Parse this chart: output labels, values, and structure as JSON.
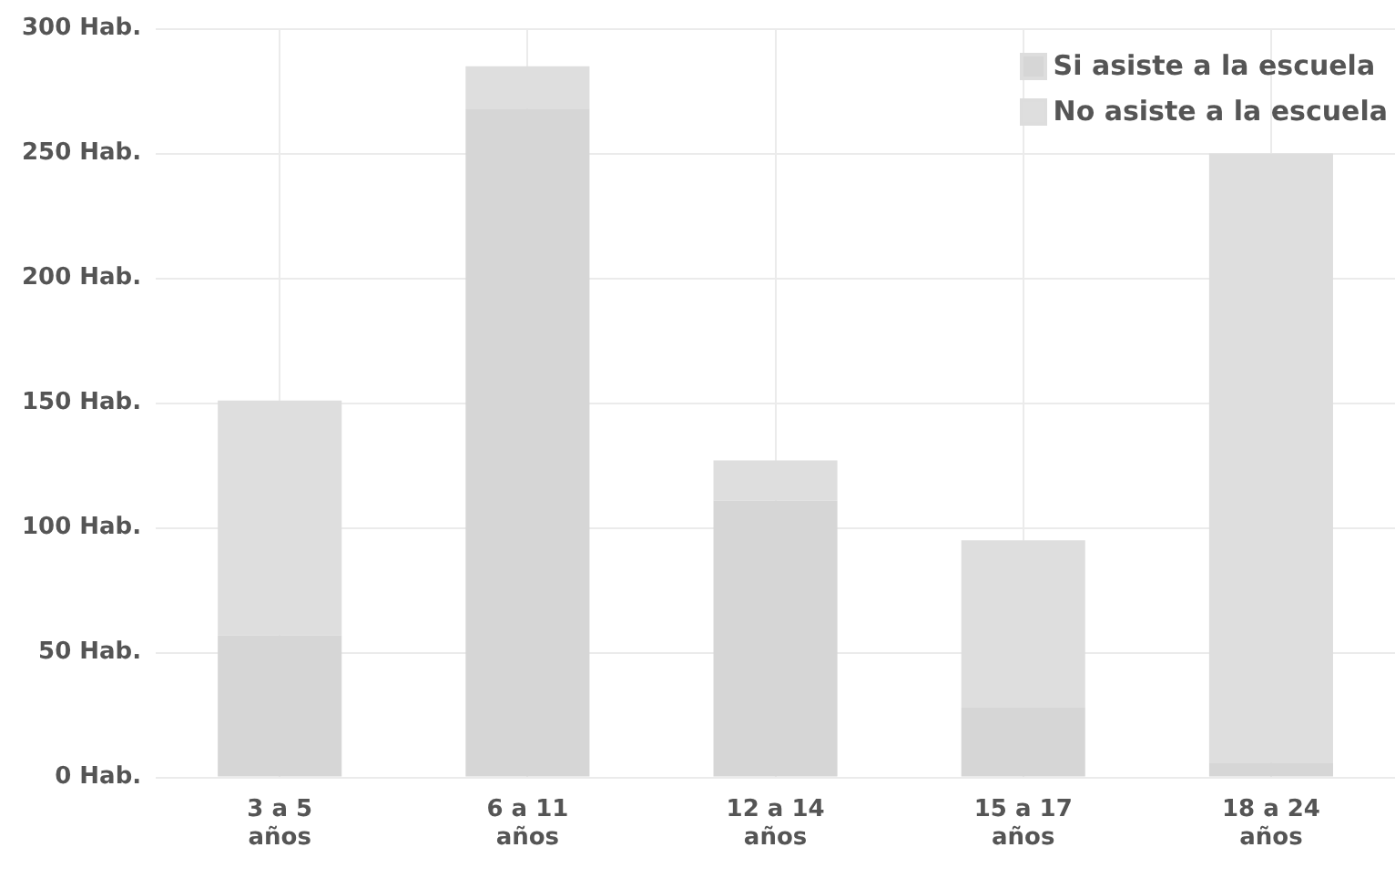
{
  "chart_data": {
    "type": "bar",
    "stacked": true,
    "categories": [
      "3 a 5 años",
      "6 a 11 años",
      "12 a 14 años",
      "15 a 17 años",
      "18 a 24 años"
    ],
    "series": [
      {
        "name": "Si asiste a la escuela",
        "color": "#d6d6d6",
        "values": [
          57,
          268,
          111,
          28,
          6
        ]
      },
      {
        "name": "No asiste a la escuela",
        "color": "#dedede",
        "values": [
          94,
          17,
          16,
          67,
          244
        ]
      }
    ],
    "ylim": [
      0,
      300
    ],
    "yticks": [
      {
        "value": 0,
        "label": "0 Hab."
      },
      {
        "value": 50,
        "label": "50 Hab."
      },
      {
        "value": 100,
        "label": "100 Hab."
      },
      {
        "value": 150,
        "label": "150 Hab."
      },
      {
        "value": 200,
        "label": "200 Hab."
      },
      {
        "value": 250,
        "label": "250 Hab."
      },
      {
        "value": 300,
        "label": "300 Hab."
      }
    ],
    "grid": true,
    "legend": "top right"
  }
}
